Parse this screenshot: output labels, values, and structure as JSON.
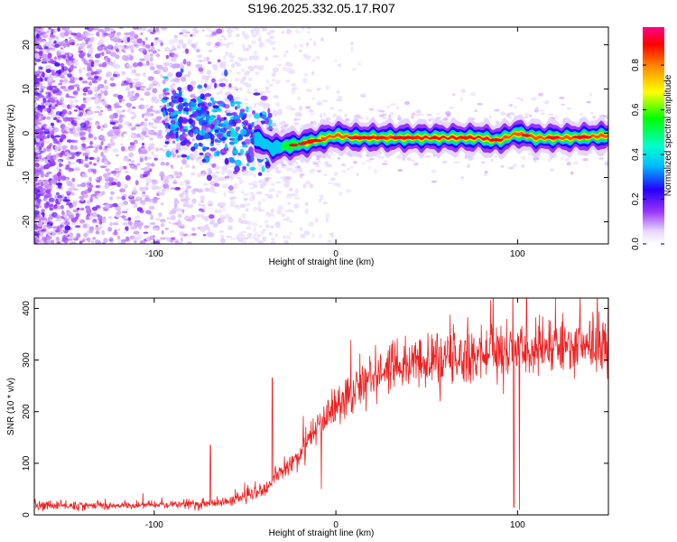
{
  "title": "S196.2025.332.05.17.R07",
  "chart_data": [
    {
      "type": "heatmap",
      "name": "spectrogram",
      "xlabel": "Height of straight line (km)",
      "ylabel": "Frequency (Hz)",
      "xlim": [
        -166,
        150
      ],
      "ylim": [
        -25,
        24
      ],
      "xticks": [
        -100,
        0,
        100
      ],
      "yticks": [
        -20,
        -10,
        0,
        10,
        20
      ],
      "xtick_labels": [
        "-100",
        "0",
        "100"
      ],
      "ytick_labels": [
        "-20",
        "-10",
        "0",
        "10",
        "20"
      ],
      "colorbar": {
        "label": "Normalized spectral amplitude",
        "range": [
          0.0,
          0.97
        ],
        "ticks": [
          0.0,
          0.2,
          0.4,
          0.6,
          0.8
        ],
        "tick_labels": [
          "0.0",
          "0.2",
          "0.4",
          "0.6",
          "0.8"
        ]
      },
      "ridge": {
        "description_values": "frequency of dominant signal (Hz) vs height (km)",
        "x": [
          -90,
          -70,
          -50,
          -40,
          -35,
          -30,
          -20,
          -10,
          0,
          10,
          20,
          40,
          60,
          80,
          85,
          90,
          100,
          110,
          130,
          150
        ],
        "y": [
          4,
          2,
          0,
          -2,
          -3.5,
          -3,
          -2.5,
          -1.5,
          -0.5,
          -1,
          -1,
          -1,
          -1,
          -1,
          -1.5,
          -1.5,
          0,
          -1,
          -1,
          -0.5
        ],
        "peak_amplitude": [
          0.35,
          0.45,
          0.4,
          0.45,
          0.5,
          0.55,
          0.7,
          0.85,
          0.9,
          0.9,
          0.92,
          0.95,
          0.97,
          0.95,
          0.95,
          0.9,
          0.92,
          0.93,
          0.9,
          0.88
        ]
      }
    },
    {
      "type": "line",
      "name": "snr",
      "xlabel": "Height of straight line (km)",
      "ylabel": "SNR (10 * v/v)",
      "xlim": [
        -166,
        150
      ],
      "ylim": [
        0,
        420
      ],
      "xticks": [
        -100,
        0,
        100
      ],
      "yticks": [
        0,
        100,
        200,
        300,
        400
      ],
      "xtick_labels": [
        "-100",
        "0",
        "100"
      ],
      "ytick_labels": [
        "0",
        "100",
        "200",
        "300",
        "400"
      ],
      "color": "#ee2222",
      "trend": {
        "x": [
          -166,
          -120,
          -80,
          -60,
          -40,
          -30,
          -20,
          -10,
          0,
          10,
          20,
          30,
          50,
          80,
          100,
          120,
          150
        ],
        "y": [
          18,
          18,
          20,
          25,
          45,
          80,
          120,
          170,
          210,
          240,
          270,
          285,
          295,
          310,
          315,
          320,
          330
        ]
      },
      "spikes": [
        {
          "x": -69,
          "y": 135
        },
        {
          "x": -35,
          "y": 265
        },
        {
          "x": -8,
          "y": 50
        },
        {
          "x": 98,
          "y": 15
        },
        {
          "x": 101,
          "y": 10
        },
        {
          "x": 105,
          "y": 420
        }
      ]
    }
  ]
}
